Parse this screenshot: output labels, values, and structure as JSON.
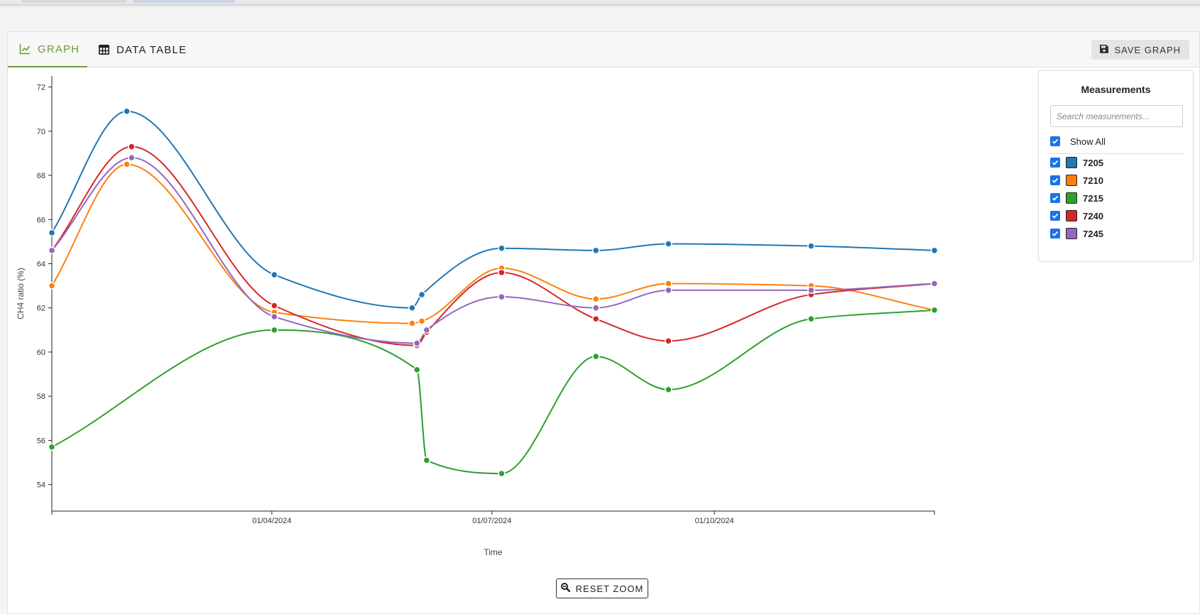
{
  "tabs": {
    "graph_label": "GRAPH",
    "table_label": "DATA TABLE",
    "save_label": "SAVE GRAPH"
  },
  "panel": {
    "title": "Measurements",
    "search_placeholder": "Search measurements...",
    "show_all_label": "Show All"
  },
  "reset_zoom_label": "RESET ZOOM",
  "colors": {
    "accent": "#6b9a3b",
    "checkbox": "#1a73e8"
  },
  "chart_data": {
    "type": "line",
    "xlabel": "Time",
    "ylabel": "CH4 ratio (%)",
    "xlim": [
      "2024-01-01",
      "2024-12-31"
    ],
    "ylim": [
      52.8,
      72.5
    ],
    "yticks": [
      54,
      56,
      58,
      60,
      62,
      64,
      66,
      68,
      70,
      72
    ],
    "xticks": [
      {
        "value": "2024-04-01",
        "label": "01/04/2024"
      },
      {
        "value": "2024-07-01",
        "label": "01/07/2024"
      },
      {
        "value": "2024-10-01",
        "label": "01/10/2024"
      }
    ],
    "curve": "smooth",
    "legend_position": "right",
    "series": [
      {
        "name": "7205",
        "color": "#1f77b4",
        "points": [
          [
            "2024-01-01",
            65.4
          ],
          [
            "2024-02-01",
            70.9
          ],
          [
            "2024-04-02",
            63.5
          ],
          [
            "2024-05-29",
            62.0
          ],
          [
            "2024-06-02",
            62.6
          ],
          [
            "2024-07-05",
            64.7
          ],
          [
            "2024-08-13",
            64.6
          ],
          [
            "2024-09-12",
            64.9
          ],
          [
            "2024-11-10",
            64.8
          ],
          [
            "2024-12-31",
            64.6
          ]
        ]
      },
      {
        "name": "7210",
        "color": "#ff7f0e",
        "points": [
          [
            "2024-01-01",
            63.0
          ],
          [
            "2024-02-01",
            68.5
          ],
          [
            "2024-04-02",
            61.8
          ],
          [
            "2024-05-29",
            61.3
          ],
          [
            "2024-06-02",
            61.4
          ],
          [
            "2024-07-05",
            63.8
          ],
          [
            "2024-08-13",
            62.4
          ],
          [
            "2024-09-12",
            63.1
          ],
          [
            "2024-11-10",
            63.0
          ],
          [
            "2024-12-31",
            61.9
          ]
        ]
      },
      {
        "name": "7215",
        "color": "#2ca02c",
        "points": [
          [
            "2024-01-01",
            55.7
          ],
          [
            "2024-04-02",
            61.0
          ],
          [
            "2024-05-31",
            59.2
          ],
          [
            "2024-06-04",
            55.1
          ],
          [
            "2024-07-05",
            54.5
          ],
          [
            "2024-08-13",
            59.8
          ],
          [
            "2024-09-12",
            58.3
          ],
          [
            "2024-11-10",
            61.5
          ],
          [
            "2024-12-31",
            61.9
          ]
        ]
      },
      {
        "name": "7240",
        "color": "#d62728",
        "points": [
          [
            "2024-01-01",
            64.6
          ],
          [
            "2024-02-03",
            69.3
          ],
          [
            "2024-04-02",
            62.1
          ],
          [
            "2024-05-31",
            60.3
          ],
          [
            "2024-06-04",
            60.9
          ],
          [
            "2024-07-05",
            63.6
          ],
          [
            "2024-08-13",
            61.5
          ],
          [
            "2024-09-12",
            60.5
          ],
          [
            "2024-11-10",
            62.6
          ],
          [
            "2024-12-31",
            63.1
          ]
        ]
      },
      {
        "name": "7245",
        "color": "#9467bd",
        "points": [
          [
            "2024-01-01",
            64.6
          ],
          [
            "2024-02-03",
            68.8
          ],
          [
            "2024-04-02",
            61.6
          ],
          [
            "2024-05-31",
            60.4
          ],
          [
            "2024-06-04",
            61.0
          ],
          [
            "2024-07-05",
            62.5
          ],
          [
            "2024-08-13",
            62.0
          ],
          [
            "2024-09-12",
            62.8
          ],
          [
            "2024-11-10",
            62.8
          ],
          [
            "2024-12-31",
            63.1
          ]
        ]
      }
    ]
  }
}
